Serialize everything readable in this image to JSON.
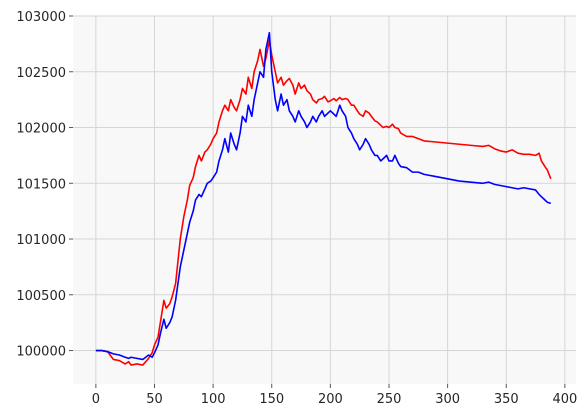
{
  "chart_data": {
    "type": "line",
    "title": "",
    "xlabel": "",
    "ylabel": "",
    "xlim": [
      -19.5,
      409.5
    ],
    "ylim": [
      99700,
      103000
    ],
    "grid": true,
    "legend": "none",
    "background_color": "#f8f8f8",
    "x_ticks": [
      0,
      50,
      100,
      150,
      200,
      250,
      300,
      350,
      400
    ],
    "y_ticks": [
      100000,
      100500,
      101000,
      101500,
      102000,
      102500,
      103000
    ],
    "x_tick_labels": [
      "0",
      "50",
      "100",
      "150",
      "200",
      "250",
      "300",
      "350",
      "400"
    ],
    "y_tick_labels": [
      "100000",
      "100500",
      "101000",
      "101500",
      "102000",
      "102500",
      "103000"
    ],
    "series": [
      {
        "color": "#ff0000",
        "points": [
          [
            0,
            100000
          ],
          [
            5,
            100000
          ],
          [
            10,
            99990
          ],
          [
            15,
            99920
          ],
          [
            20,
            99910
          ],
          [
            25,
            99880
          ],
          [
            28,
            99900
          ],
          [
            30,
            99870
          ],
          [
            35,
            99880
          ],
          [
            40,
            99870
          ],
          [
            45,
            99930
          ],
          [
            48,
            99980
          ],
          [
            50,
            100050
          ],
          [
            53,
            100120
          ],
          [
            55,
            100250
          ],
          [
            58,
            100450
          ],
          [
            60,
            100380
          ],
          [
            63,
            100420
          ],
          [
            65,
            100480
          ],
          [
            68,
            100600
          ],
          [
            70,
            100800
          ],
          [
            72,
            101000
          ],
          [
            75,
            101200
          ],
          [
            78,
            101350
          ],
          [
            80,
            101480
          ],
          [
            83,
            101550
          ],
          [
            85,
            101650
          ],
          [
            88,
            101750
          ],
          [
            90,
            101700
          ],
          [
            93,
            101780
          ],
          [
            95,
            101800
          ],
          [
            98,
            101850
          ],
          [
            100,
            101900
          ],
          [
            103,
            101950
          ],
          [
            105,
            102050
          ],
          [
            108,
            102150
          ],
          [
            110,
            102200
          ],
          [
            113,
            102150
          ],
          [
            115,
            102250
          ],
          [
            118,
            102180
          ],
          [
            120,
            102150
          ],
          [
            123,
            102250
          ],
          [
            125,
            102350
          ],
          [
            128,
            102300
          ],
          [
            130,
            102450
          ],
          [
            133,
            102350
          ],
          [
            135,
            102500
          ],
          [
            138,
            102600
          ],
          [
            140,
            102700
          ],
          [
            143,
            102550
          ],
          [
            145,
            102620
          ],
          [
            148,
            102780
          ],
          [
            150,
            102650
          ],
          [
            153,
            102500
          ],
          [
            155,
            102400
          ],
          [
            158,
            102450
          ],
          [
            160,
            102380
          ],
          [
            163,
            102420
          ],
          [
            165,
            102440
          ],
          [
            168,
            102380
          ],
          [
            170,
            102300
          ],
          [
            173,
            102400
          ],
          [
            175,
            102350
          ],
          [
            178,
            102380
          ],
          [
            180,
            102330
          ],
          [
            183,
            102300
          ],
          [
            185,
            102250
          ],
          [
            188,
            102220
          ],
          [
            190,
            102250
          ],
          [
            193,
            102260
          ],
          [
            195,
            102280
          ],
          [
            198,
            102230
          ],
          [
            200,
            102240
          ],
          [
            203,
            102260
          ],
          [
            205,
            102240
          ],
          [
            208,
            102270
          ],
          [
            210,
            102250
          ],
          [
            213,
            102260
          ],
          [
            215,
            102250
          ],
          [
            218,
            102200
          ],
          [
            220,
            102200
          ],
          [
            223,
            102150
          ],
          [
            225,
            102120
          ],
          [
            228,
            102100
          ],
          [
            230,
            102150
          ],
          [
            233,
            102130
          ],
          [
            235,
            102100
          ],
          [
            238,
            102060
          ],
          [
            240,
            102050
          ],
          [
            243,
            102020
          ],
          [
            245,
            102000
          ],
          [
            248,
            102010
          ],
          [
            250,
            102000
          ],
          [
            253,
            102030
          ],
          [
            255,
            102000
          ],
          [
            258,
            101990
          ],
          [
            260,
            101950
          ],
          [
            265,
            101920
          ],
          [
            270,
            101920
          ],
          [
            275,
            101900
          ],
          [
            280,
            101880
          ],
          [
            290,
            101870
          ],
          [
            300,
            101860
          ],
          [
            310,
            101850
          ],
          [
            320,
            101840
          ],
          [
            330,
            101830
          ],
          [
            335,
            101840
          ],
          [
            340,
            101810
          ],
          [
            345,
            101790
          ],
          [
            350,
            101780
          ],
          [
            355,
            101800
          ],
          [
            360,
            101770
          ],
          [
            365,
            101760
          ],
          [
            370,
            101760
          ],
          [
            375,
            101750
          ],
          [
            378,
            101770
          ],
          [
            380,
            101700
          ],
          [
            383,
            101650
          ],
          [
            385,
            101620
          ],
          [
            388,
            101540
          ]
        ]
      },
      {
        "color": "#0000ff",
        "points": [
          [
            0,
            100000
          ],
          [
            5,
            100000
          ],
          [
            10,
            99990
          ],
          [
            15,
            99970
          ],
          [
            20,
            99960
          ],
          [
            25,
            99940
          ],
          [
            28,
            99930
          ],
          [
            30,
            99940
          ],
          [
            35,
            99930
          ],
          [
            40,
            99920
          ],
          [
            45,
            99960
          ],
          [
            48,
            99940
          ],
          [
            50,
            99980
          ],
          [
            53,
            100050
          ],
          [
            55,
            100150
          ],
          [
            58,
            100280
          ],
          [
            60,
            100200
          ],
          [
            63,
            100250
          ],
          [
            65,
            100300
          ],
          [
            68,
            100450
          ],
          [
            70,
            100600
          ],
          [
            72,
            100750
          ],
          [
            75,
            100900
          ],
          [
            78,
            101050
          ],
          [
            80,
            101150
          ],
          [
            83,
            101250
          ],
          [
            85,
            101350
          ],
          [
            88,
            101400
          ],
          [
            90,
            101380
          ],
          [
            93,
            101450
          ],
          [
            95,
            101500
          ],
          [
            98,
            101520
          ],
          [
            100,
            101550
          ],
          [
            103,
            101600
          ],
          [
            105,
            101700
          ],
          [
            108,
            101800
          ],
          [
            110,
            101900
          ],
          [
            113,
            101780
          ],
          [
            115,
            101950
          ],
          [
            118,
            101850
          ],
          [
            120,
            101800
          ],
          [
            123,
            101950
          ],
          [
            125,
            102100
          ],
          [
            128,
            102050
          ],
          [
            130,
            102200
          ],
          [
            133,
            102100
          ],
          [
            135,
            102250
          ],
          [
            138,
            102400
          ],
          [
            140,
            102500
          ],
          [
            143,
            102450
          ],
          [
            145,
            102700
          ],
          [
            148,
            102850
          ],
          [
            150,
            102500
          ],
          [
            153,
            102250
          ],
          [
            155,
            102150
          ],
          [
            158,
            102300
          ],
          [
            160,
            102200
          ],
          [
            163,
            102250
          ],
          [
            165,
            102150
          ],
          [
            168,
            102100
          ],
          [
            170,
            102050
          ],
          [
            173,
            102150
          ],
          [
            175,
            102100
          ],
          [
            178,
            102050
          ],
          [
            180,
            102000
          ],
          [
            183,
            102050
          ],
          [
            185,
            102100
          ],
          [
            188,
            102050
          ],
          [
            190,
            102100
          ],
          [
            193,
            102150
          ],
          [
            195,
            102100
          ],
          [
            198,
            102130
          ],
          [
            200,
            102150
          ],
          [
            203,
            102120
          ],
          [
            205,
            102100
          ],
          [
            208,
            102200
          ],
          [
            210,
            102150
          ],
          [
            213,
            102100
          ],
          [
            215,
            102000
          ],
          [
            218,
            101950
          ],
          [
            220,
            101900
          ],
          [
            223,
            101850
          ],
          [
            225,
            101800
          ],
          [
            228,
            101850
          ],
          [
            230,
            101900
          ],
          [
            233,
            101850
          ],
          [
            235,
            101800
          ],
          [
            238,
            101750
          ],
          [
            240,
            101750
          ],
          [
            243,
            101700
          ],
          [
            245,
            101720
          ],
          [
            248,
            101750
          ],
          [
            250,
            101700
          ],
          [
            253,
            101700
          ],
          [
            255,
            101750
          ],
          [
            258,
            101680
          ],
          [
            260,
            101650
          ],
          [
            265,
            101640
          ],
          [
            270,
            101600
          ],
          [
            275,
            101600
          ],
          [
            280,
            101580
          ],
          [
            290,
            101560
          ],
          [
            300,
            101540
          ],
          [
            310,
            101520
          ],
          [
            320,
            101510
          ],
          [
            330,
            101500
          ],
          [
            335,
            101510
          ],
          [
            340,
            101490
          ],
          [
            345,
            101480
          ],
          [
            350,
            101470
          ],
          [
            355,
            101460
          ],
          [
            360,
            101450
          ],
          [
            365,
            101460
          ],
          [
            370,
            101450
          ],
          [
            375,
            101440
          ],
          [
            378,
            101400
          ],
          [
            380,
            101380
          ],
          [
            383,
            101350
          ],
          [
            385,
            101330
          ],
          [
            388,
            101320
          ]
        ]
      }
    ]
  }
}
